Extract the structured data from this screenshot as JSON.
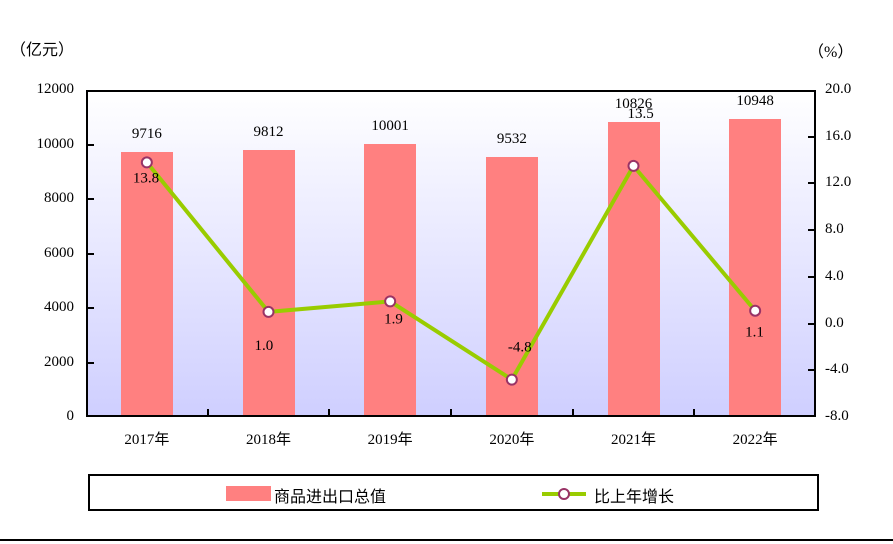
{
  "chart_data": {
    "type": "bar+line",
    "categories": [
      "2017年",
      "2018年",
      "2019年",
      "2020年",
      "2021年",
      "2022年"
    ],
    "series": [
      {
        "name": "商品进出口总值",
        "type": "bar",
        "axis": "left",
        "color": "#ff8080",
        "values": [
          9716,
          9812,
          10001,
          9532,
          10826,
          10948
        ]
      },
      {
        "name": "比上年增长",
        "type": "line",
        "axis": "right",
        "color": "#99cc00",
        "marker_edge": "#993366",
        "values": [
          13.8,
          1.0,
          1.9,
          -4.8,
          13.5,
          1.1
        ]
      }
    ],
    "left_axis": {
      "unit": "（亿元）",
      "ticks": [
        "12000",
        "10000",
        "8000",
        "6000",
        "4000",
        "2000",
        "0"
      ],
      "ylim": [
        0,
        12000
      ]
    },
    "right_axis": {
      "unit": "（%）",
      "ticks": [
        "20.0",
        "16.0",
        "12.0",
        "8.0",
        "4.0",
        "0.0",
        "-4.0",
        "-8.0"
      ],
      "ylim": [
        -8,
        20
      ]
    },
    "bar_labels": [
      "9716",
      "9812",
      "10001",
      "9532",
      "10826",
      "10948"
    ],
    "line_labels": [
      "13.8",
      "1.0",
      "1.9",
      "-4.8",
      "13.5",
      "1.1"
    ],
    "legend": {
      "position": "bottom",
      "items": [
        "商品进出口总值",
        "比上年增长"
      ]
    },
    "grid": false
  }
}
